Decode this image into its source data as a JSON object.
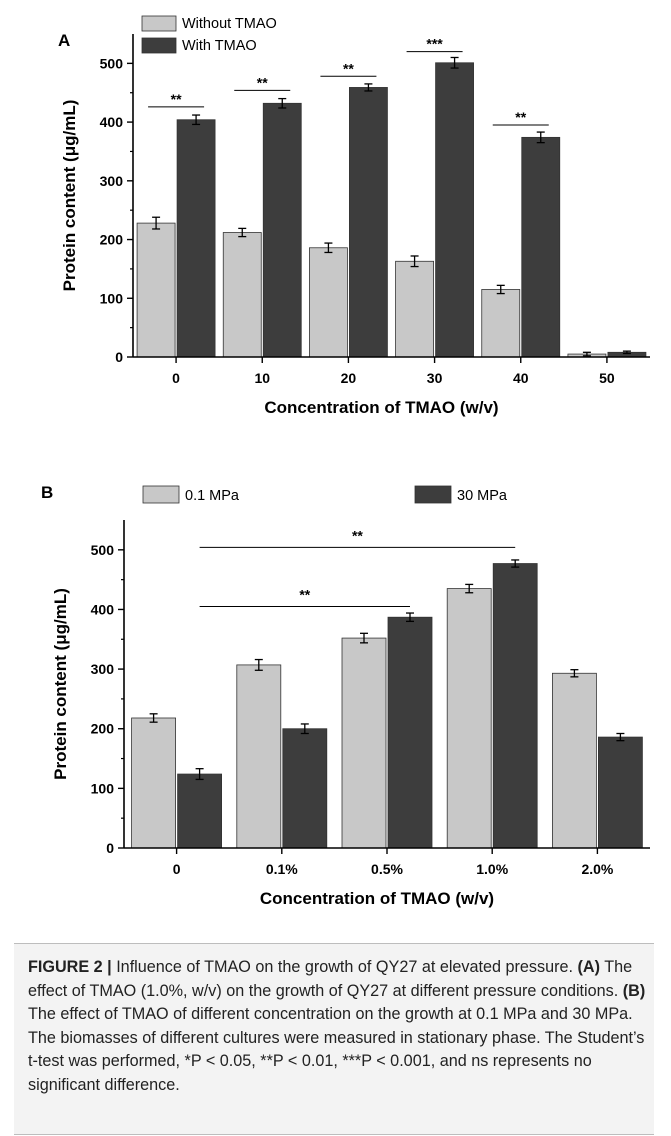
{
  "chart_data": [
    {
      "type": "bar",
      "panel_label": "A",
      "categories": [
        "0",
        "10",
        "20",
        "30",
        "40",
        "50"
      ],
      "series": [
        {
          "name": "Without TMAO",
          "values": [
            228,
            212,
            186,
            163,
            115,
            5
          ],
          "errors": [
            10,
            7,
            8,
            9,
            7,
            3
          ],
          "color": "#c8c8c8"
        },
        {
          "name": "With TMAO",
          "values": [
            404,
            432,
            459,
            501,
            374,
            8
          ],
          "errors": [
            8,
            8,
            6,
            9,
            9,
            2
          ],
          "color": "#3d3d3d"
        }
      ],
      "significance": [
        {
          "category_index": 0,
          "label": "**",
          "value": 426
        },
        {
          "category_index": 1,
          "label": "**",
          "value": 454
        },
        {
          "category_index": 2,
          "label": "**",
          "value": 478
        },
        {
          "category_index": 3,
          "label": "***",
          "value": 520
        },
        {
          "category_index": 4,
          "label": "**",
          "value": 395
        }
      ],
      "xlabel": "Concentration of TMAO (w/v)",
      "ylabel": "Protein content (μg/mL)",
      "ylim": [
        0,
        550
      ],
      "yticks": [
        0,
        100,
        200,
        300,
        400,
        500
      ],
      "legend_position": "top-left",
      "grid": false
    },
    {
      "type": "bar",
      "panel_label": "B",
      "categories": [
        "0",
        "0.1%",
        "0.5%",
        "1.0%",
        "2.0%"
      ],
      "series": [
        {
          "name": "0.1 MPa",
          "values": [
            218,
            307,
            352,
            435,
            293
          ],
          "errors": [
            7,
            9,
            8,
            7,
            6
          ],
          "color": "#c8c8c8"
        },
        {
          "name": "30 MPa",
          "values": [
            124,
            200,
            387,
            477,
            186
          ],
          "errors": [
            9,
            8,
            7,
            6,
            6
          ],
          "color": "#3d3d3d"
        }
      ],
      "brackets": [
        {
          "from_category": 0,
          "to_category": 3,
          "label": "**",
          "value": 504
        },
        {
          "from_category": 0,
          "to_category": 2,
          "label": "**",
          "value": 405
        }
      ],
      "xlabel": "Concentration of TMAO (w/v)",
      "ylabel": "Protein content (μg/mL)",
      "ylim": [
        0,
        550
      ],
      "yticks": [
        0,
        100,
        200,
        300,
        400,
        500
      ],
      "legend_position": "top",
      "grid": false
    }
  ],
  "caption": {
    "label": "FIGURE 2 |",
    "title": "Influence of TMAO on the growth of QY27 at elevated pressure.",
    "part_a_label": "(A)",
    "part_a_text": "The effect of TMAO (1.0%, w/v) on the growth of QY27 at different pressure conditions.",
    "part_b_label": "(B)",
    "part_b_text": "The effect of TMAO of different concentration on the growth at 0.1 MPa and 30 MPa. The biomasses of different cultures were measured in stationary phase. The Student’s t-test was performed, *P < 0.05, **P < 0.01, ***P < 0.001, and ns represents no significant difference."
  }
}
